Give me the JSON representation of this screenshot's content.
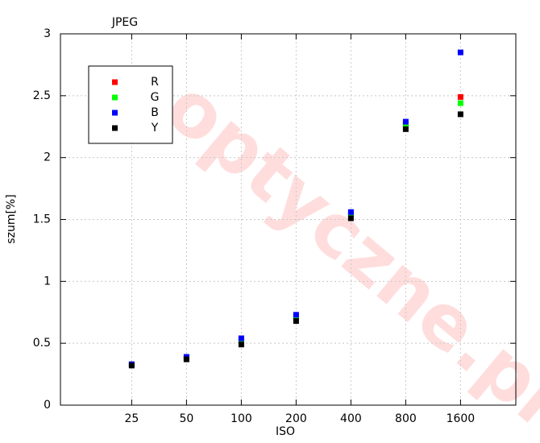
{
  "chart_data": {
    "type": "scatter",
    "title": "JPEG",
    "watermark": "optyczne.pl",
    "x_label": "ISO",
    "y_label": "szum[%]",
    "categories": [
      "25",
      "50",
      "100",
      "200",
      "400",
      "800",
      "1600"
    ],
    "series": [
      {
        "name": "R",
        "color": "#ff0000",
        "values": [
          0.33,
          0.38,
          0.52,
          0.71,
          1.54,
          2.27,
          2.49
        ]
      },
      {
        "name": "G",
        "color": "#00ff00",
        "values": [
          0.33,
          0.38,
          0.52,
          0.71,
          1.54,
          2.26,
          2.44
        ]
      },
      {
        "name": "B",
        "color": "#0000ff",
        "values": [
          0.33,
          0.39,
          0.54,
          0.73,
          1.56,
          2.29,
          2.85
        ]
      },
      {
        "name": "Y",
        "color": "#000000",
        "values": [
          0.32,
          0.37,
          0.49,
          0.68,
          1.51,
          2.23,
          2.35
        ]
      }
    ],
    "ylim": [
      0,
      3
    ],
    "yticks": [
      0,
      0.5,
      1,
      1.5,
      2,
      2.5,
      3
    ],
    "grid": true
  }
}
